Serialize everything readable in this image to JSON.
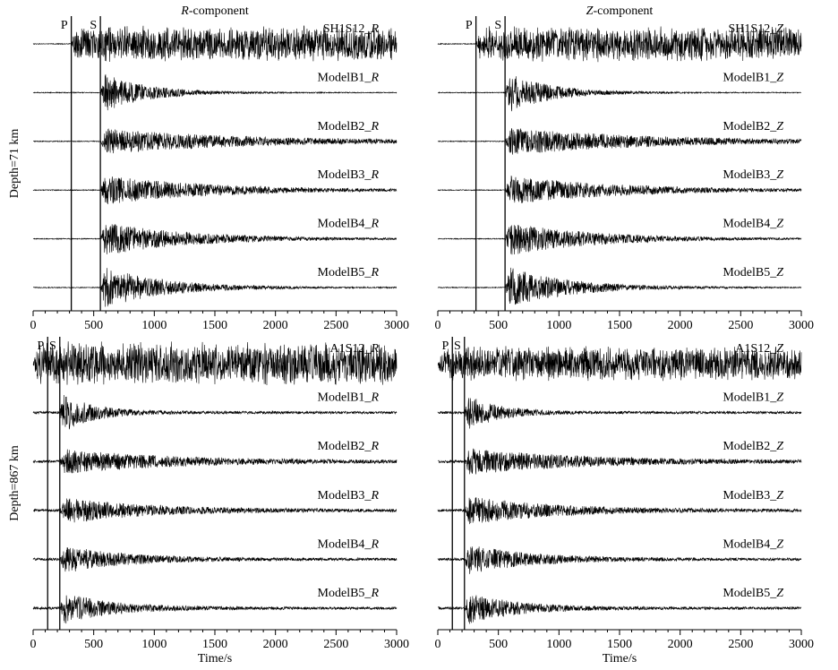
{
  "chart_data": [
    {
      "type": "line",
      "title_prefix": "R",
      "title_suffix": "-component",
      "ylabel": "Depth=71 km",
      "xlabel": "",
      "xlim": [
        0,
        3000
      ],
      "xticks": [
        0,
        500,
        1000,
        1500,
        2000,
        2500,
        3000
      ],
      "phase_markers": [
        {
          "label": "P",
          "time": 315
        },
        {
          "label": "S",
          "time": 555
        }
      ],
      "series": [
        {
          "name_prefix": "SH1S12_",
          "name_suffix": "R",
          "onset": 315,
          "peak": 0.85,
          "decay": 2500,
          "noise": 0.02
        },
        {
          "name_prefix": "ModelB1_",
          "name_suffix": "R",
          "onset": 555,
          "peak": 1.0,
          "decay": 350,
          "noise": 0.02
        },
        {
          "name_prefix": "ModelB2_",
          "name_suffix": "R",
          "onset": 555,
          "peak": 0.6,
          "decay": 1200,
          "noise": 0.02
        },
        {
          "name_prefix": "ModelB3_",
          "name_suffix": "R",
          "onset": 555,
          "peak": 0.7,
          "decay": 900,
          "noise": 0.02
        },
        {
          "name_prefix": "ModelB4_",
          "name_suffix": "R",
          "onset": 555,
          "peak": 0.8,
          "decay": 700,
          "noise": 0.02
        },
        {
          "name_prefix": "ModelB5_",
          "name_suffix": "R",
          "onset": 555,
          "peak": 1.0,
          "decay": 500,
          "noise": 0.02
        }
      ]
    },
    {
      "type": "line",
      "title_prefix": "Z",
      "title_suffix": "-component",
      "ylabel": "",
      "xlabel": "",
      "xlim": [
        0,
        3000
      ],
      "xticks": [
        0,
        500,
        1000,
        1500,
        2000,
        2500,
        3000
      ],
      "phase_markers": [
        {
          "label": "P",
          "time": 315
        },
        {
          "label": "S",
          "time": 555
        }
      ],
      "series": [
        {
          "name_prefix": "SH1S12_",
          "name_suffix": "Z",
          "onset": 315,
          "peak": 0.85,
          "decay": 2500,
          "noise": 0.02
        },
        {
          "name_prefix": "ModelB1_",
          "name_suffix": "Z",
          "onset": 555,
          "peak": 1.0,
          "decay": 350,
          "noise": 0.02
        },
        {
          "name_prefix": "ModelB2_",
          "name_suffix": "Z",
          "onset": 555,
          "peak": 0.65,
          "decay": 1200,
          "noise": 0.02
        },
        {
          "name_prefix": "ModelB3_",
          "name_suffix": "Z",
          "onset": 555,
          "peak": 0.7,
          "decay": 900,
          "noise": 0.02
        },
        {
          "name_prefix": "ModelB4_",
          "name_suffix": "Z",
          "onset": 555,
          "peak": 0.8,
          "decay": 700,
          "noise": 0.02
        },
        {
          "name_prefix": "ModelB5_",
          "name_suffix": "Z",
          "onset": 555,
          "peak": 1.0,
          "decay": 500,
          "noise": 0.02
        }
      ]
    },
    {
      "type": "line",
      "title_prefix": "",
      "title_suffix": "",
      "ylabel": "Depth=867 km",
      "xlabel": "Time/s",
      "xlim": [
        0,
        3000
      ],
      "xticks": [
        0,
        500,
        1000,
        1500,
        2000,
        2500,
        3000
      ],
      "phase_markers": [
        {
          "label": "P",
          "time": 120
        },
        {
          "label": "S",
          "time": 220
        }
      ],
      "series": [
        {
          "name_prefix": "A1S12_",
          "name_suffix": "R",
          "onset": 0,
          "peak": 1.0,
          "decay": 3000,
          "noise": 0.05
        },
        {
          "name_prefix": "ModelB1_",
          "name_suffix": "R",
          "onset": 220,
          "peak": 1.0,
          "decay": 250,
          "noise": 0.06
        },
        {
          "name_prefix": "ModelB2_",
          "name_suffix": "R",
          "onset": 220,
          "peak": 0.55,
          "decay": 900,
          "noise": 0.06
        },
        {
          "name_prefix": "ModelB3_",
          "name_suffix": "R",
          "onset": 220,
          "peak": 0.6,
          "decay": 700,
          "noise": 0.06
        },
        {
          "name_prefix": "ModelB4_",
          "name_suffix": "R",
          "onset": 220,
          "peak": 0.65,
          "decay": 500,
          "noise": 0.06
        },
        {
          "name_prefix": "ModelB5_",
          "name_suffix": "R",
          "onset": 220,
          "peak": 0.75,
          "decay": 400,
          "noise": 0.06
        }
      ]
    },
    {
      "type": "line",
      "title_prefix": "",
      "title_suffix": "",
      "ylabel": "",
      "xlabel": "Time/s",
      "xlim": [
        0,
        3000
      ],
      "xticks": [
        0,
        500,
        1000,
        1500,
        2000,
        2500,
        3000
      ],
      "phase_markers": [
        {
          "label": "P",
          "time": 120
        },
        {
          "label": "S",
          "time": 220
        }
      ],
      "series": [
        {
          "name_prefix": "A1S12_",
          "name_suffix": "Z",
          "onset": 0,
          "peak": 0.8,
          "decay": 3000,
          "noise": 0.05
        },
        {
          "name_prefix": "ModelB1_",
          "name_suffix": "Z",
          "onset": 220,
          "peak": 0.9,
          "decay": 250,
          "noise": 0.06
        },
        {
          "name_prefix": "ModelB2_",
          "name_suffix": "Z",
          "onset": 220,
          "peak": 0.6,
          "decay": 900,
          "noise": 0.06
        },
        {
          "name_prefix": "ModelB3_",
          "name_suffix": "Z",
          "onset": 220,
          "peak": 0.65,
          "decay": 700,
          "noise": 0.06
        },
        {
          "name_prefix": "ModelB4_",
          "name_suffix": "Z",
          "onset": 220,
          "peak": 0.7,
          "decay": 500,
          "noise": 0.06
        },
        {
          "name_prefix": "ModelB5_",
          "name_suffix": "Z",
          "onset": 220,
          "peak": 0.75,
          "decay": 400,
          "noise": 0.06
        }
      ]
    }
  ]
}
